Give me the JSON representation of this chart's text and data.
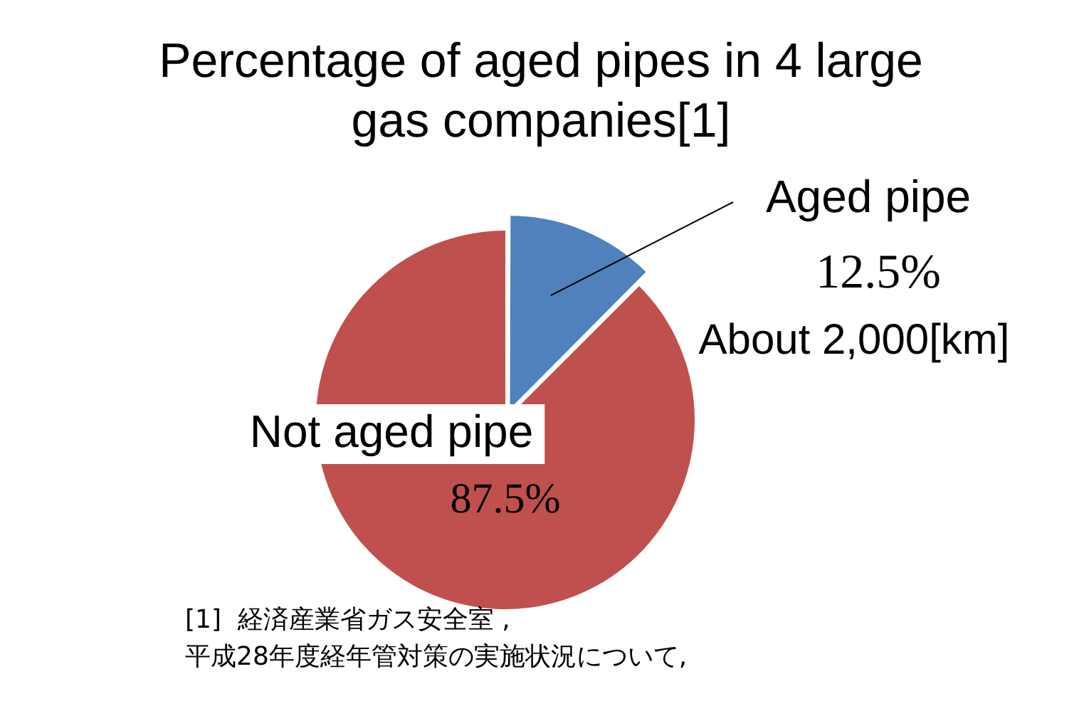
{
  "chart_data": {
    "type": "pie",
    "title": "Percentage of aged pipes in 4 large gas companies[1]",
    "categories": [
      "Aged pipe",
      "Not aged pipe"
    ],
    "values": [
      12.5,
      87.5
    ],
    "colors": [
      "#4f81bd",
      "#c0504d"
    ],
    "value_labels": [
      "12.5%",
      "87.5%"
    ],
    "annotations": [
      "About 2,000[km]",
      "[1]  経済産業省ガス安全室 ,\n平成28年度経年管対策の実施状況について,"
    ],
    "legend": false
  }
}
